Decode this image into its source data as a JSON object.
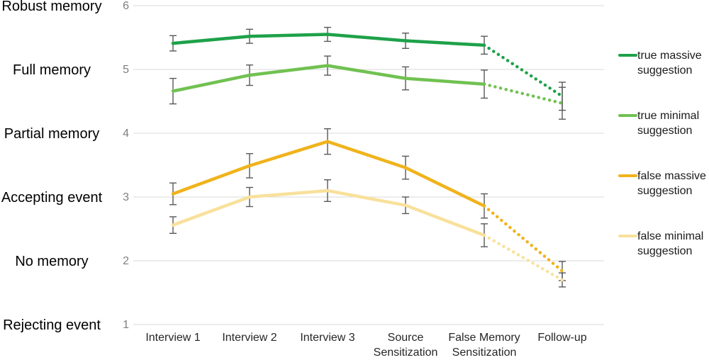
{
  "figure": {
    "background": "#ffffff",
    "gridline_color": "#d9d9d9",
    "error_bar_color": "#595959",
    "number_label_color": "#7f7f7f",
    "axis_label_color": "#262626",
    "category_label_color": "#000000"
  },
  "chart_data": {
    "type": "line",
    "title": "",
    "xlabel": "",
    "ylabel": "",
    "ylim": [
      1,
      6
    ],
    "grid": "horizontal",
    "legend_position": "right",
    "error_bars": true,
    "dotted_from_index": 4,
    "x_categories": [
      {
        "label": "Interview 1",
        "lines": [
          "Interview 1"
        ]
      },
      {
        "label": "Interview 2",
        "lines": [
          "Interview 2"
        ]
      },
      {
        "label": "Interview 3",
        "lines": [
          "Interview 3"
        ]
      },
      {
        "label": "Source Sensitization",
        "lines": [
          "Source",
          "Sensitization"
        ]
      },
      {
        "label": "False Memory Sensitization",
        "lines": [
          "False Memory",
          "Sensitization"
        ]
      },
      {
        "label": "Follow-up",
        "lines": [
          "Follow-up"
        ]
      }
    ],
    "y_ticks": [
      {
        "value": 6,
        "number": "6",
        "label": "Robust memory"
      },
      {
        "value": 5,
        "number": "5",
        "label": "Full memory"
      },
      {
        "value": 4,
        "number": "4",
        "label": "Partial memory"
      },
      {
        "value": 3,
        "number": "3",
        "label": "Accepting event"
      },
      {
        "value": 2,
        "number": "2",
        "label": "No memory"
      },
      {
        "value": 1,
        "number": "1",
        "label": "Rejecting event"
      }
    ],
    "series": [
      {
        "name": "true massive suggestion",
        "color": "#1ea149",
        "values": [
          5.41,
          5.52,
          5.55,
          5.45,
          5.38,
          4.58
        ],
        "errors": [
          0.12,
          0.11,
          0.11,
          0.12,
          0.14,
          0.22
        ]
      },
      {
        "name": "true minimal suggestion",
        "color": "#71c151",
        "values": [
          4.66,
          4.91,
          5.06,
          4.86,
          4.77,
          4.47
        ],
        "errors": [
          0.2,
          0.16,
          0.15,
          0.18,
          0.22,
          0.25
        ]
      },
      {
        "name": "false massive suggestion",
        "color": "#f0b31c",
        "values": [
          3.05,
          3.49,
          3.87,
          3.46,
          2.86,
          1.84
        ],
        "errors": [
          0.17,
          0.19,
          0.2,
          0.18,
          0.19,
          0.15
        ]
      },
      {
        "name": "false minimal suggestion",
        "color": "#f8e19c",
        "values": [
          2.56,
          3.0,
          3.1,
          2.87,
          2.4,
          1.7
        ],
        "errors": [
          0.13,
          0.15,
          0.17,
          0.13,
          0.18,
          0.11
        ]
      }
    ]
  }
}
